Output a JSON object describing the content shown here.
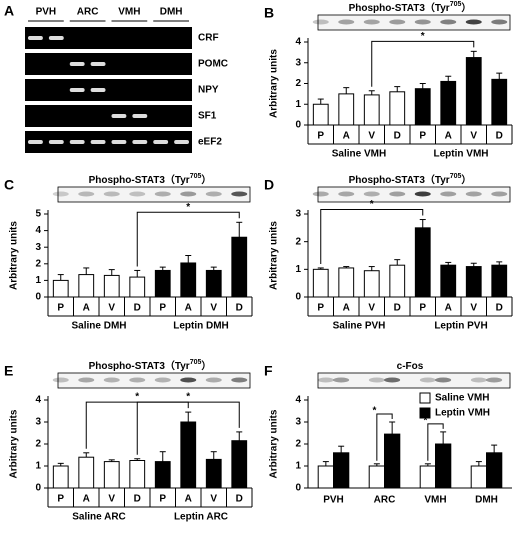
{
  "gel": {
    "label": "A",
    "regions": [
      "PVH",
      "ARC",
      "VMH",
      "DMH"
    ],
    "genes": [
      "CRF",
      "POMC",
      "NPY",
      "SF1",
      "eEF2"
    ]
  },
  "chart_data": [
    {
      "type": "bar",
      "label": "B",
      "title": "Phospho-STAT3（Tyr",
      "title_superscript": "705",
      "title_end": "）",
      "ylabel": "Arbitrary units",
      "categories": [
        "P",
        "A",
        "V",
        "D",
        "P",
        "A",
        "V",
        "D"
      ],
      "values": [
        1.0,
        1.5,
        1.45,
        1.6,
        1.75,
        2.1,
        3.25,
        2.2
      ],
      "errors": [
        0.25,
        0.3,
        0.2,
        0.25,
        0.25,
        0.25,
        0.3,
        0.3
      ],
      "colors": [
        "#ffffff",
        "#ffffff",
        "#ffffff",
        "#ffffff",
        "#000000",
        "#000000",
        "#000000",
        "#000000"
      ],
      "groups": [
        "Saline VMH",
        "Leptin VMH"
      ],
      "ylim": [
        0,
        4
      ],
      "yticks": [
        0,
        1,
        2,
        3,
        4
      ],
      "annotations": [
        {
          "text": "*",
          "from": 2,
          "to": 6
        }
      ]
    },
    {
      "type": "bar",
      "label": "C",
      "title": "Phospho-STAT3（Tyr",
      "title_superscript": "705",
      "title_end": "）",
      "ylabel": "Arbitrary units",
      "categories": [
        "P",
        "A",
        "V",
        "D",
        "P",
        "A",
        "V",
        "D"
      ],
      "values": [
        1.0,
        1.35,
        1.3,
        1.2,
        1.6,
        2.05,
        1.6,
        3.6
      ],
      "errors": [
        0.35,
        0.4,
        0.35,
        0.4,
        0.2,
        0.45,
        0.2,
        0.9
      ],
      "colors": [
        "#ffffff",
        "#ffffff",
        "#ffffff",
        "#ffffff",
        "#000000",
        "#000000",
        "#000000",
        "#000000"
      ],
      "groups": [
        "Saline DMH",
        "Leptin DMH"
      ],
      "ylim": [
        0,
        5
      ],
      "yticks": [
        0,
        1,
        2,
        3,
        4,
        5
      ],
      "annotations": [
        {
          "text": "*",
          "from": 3,
          "to": 7
        }
      ]
    },
    {
      "type": "bar",
      "label": "D",
      "title": "Phospho-STAT3（Tyr",
      "title_superscript": "705",
      "title_end": "）",
      "ylabel": "Arbitrary units",
      "categories": [
        "P",
        "A",
        "V",
        "D",
        "P",
        "A",
        "V",
        "D"
      ],
      "values": [
        1.0,
        1.05,
        0.95,
        1.15,
        2.5,
        1.15,
        1.1,
        1.15
      ],
      "errors": [
        0.05,
        0.05,
        0.15,
        0.2,
        0.3,
        0.1,
        0.12,
        0.12
      ],
      "colors": [
        "#ffffff",
        "#ffffff",
        "#ffffff",
        "#ffffff",
        "#000000",
        "#000000",
        "#000000",
        "#000000"
      ],
      "groups": [
        "Saline PVH",
        "Leptin PVH"
      ],
      "ylim": [
        0,
        3
      ],
      "yticks": [
        0,
        1,
        2,
        3
      ],
      "annotations": [
        {
          "text": "*",
          "from": 0,
          "to": 4
        }
      ]
    },
    {
      "type": "bar",
      "label": "E",
      "title": "Phospho-STAT3（Tyr",
      "title_superscript": "705",
      "title_end": "）",
      "ylabel": "Arbitrary units",
      "categories": [
        "P",
        "A",
        "V",
        "D",
        "P",
        "A",
        "V",
        "D"
      ],
      "values": [
        1.0,
        1.4,
        1.2,
        1.25,
        1.2,
        3.0,
        1.3,
        2.15
      ],
      "errors": [
        0.12,
        0.2,
        0.08,
        0.08,
        0.45,
        0.45,
        0.35,
        0.4
      ],
      "colors": [
        "#ffffff",
        "#ffffff",
        "#ffffff",
        "#ffffff",
        "#000000",
        "#000000",
        "#000000",
        "#000000"
      ],
      "groups": [
        "Saline ARC",
        "Leptin ARC"
      ],
      "ylim": [
        0,
        4
      ],
      "yticks": [
        0,
        1,
        2,
        3,
        4
      ],
      "annotations": [
        {
          "text": "*",
          "from": 1,
          "to": 5
        },
        {
          "text": "*",
          "from": 3,
          "to": 7
        }
      ]
    },
    {
      "type": "grouped_bar",
      "label": "F",
      "title": "c-Fos",
      "ylabel": "Arbitrary units",
      "categories": [
        "PVH",
        "ARC",
        "VMH",
        "DMH"
      ],
      "series": [
        {
          "name": "Saline VMH",
          "color": "#ffffff",
          "values": [
            1.0,
            1.0,
            1.0,
            1.0
          ],
          "errors": [
            0.2,
            0.1,
            0.1,
            0.2
          ]
        },
        {
          "name": "Leptin VMH",
          "color": "#000000",
          "values": [
            1.6,
            2.45,
            2.0,
            1.6
          ],
          "errors": [
            0.3,
            0.55,
            0.55,
            0.35
          ]
        }
      ],
      "ylim": [
        0,
        4
      ],
      "yticks": [
        0,
        1,
        2,
        3,
        4
      ],
      "annotations": [
        {
          "text": "*",
          "category": 1
        },
        {
          "text": "*",
          "category": 2
        }
      ]
    }
  ]
}
